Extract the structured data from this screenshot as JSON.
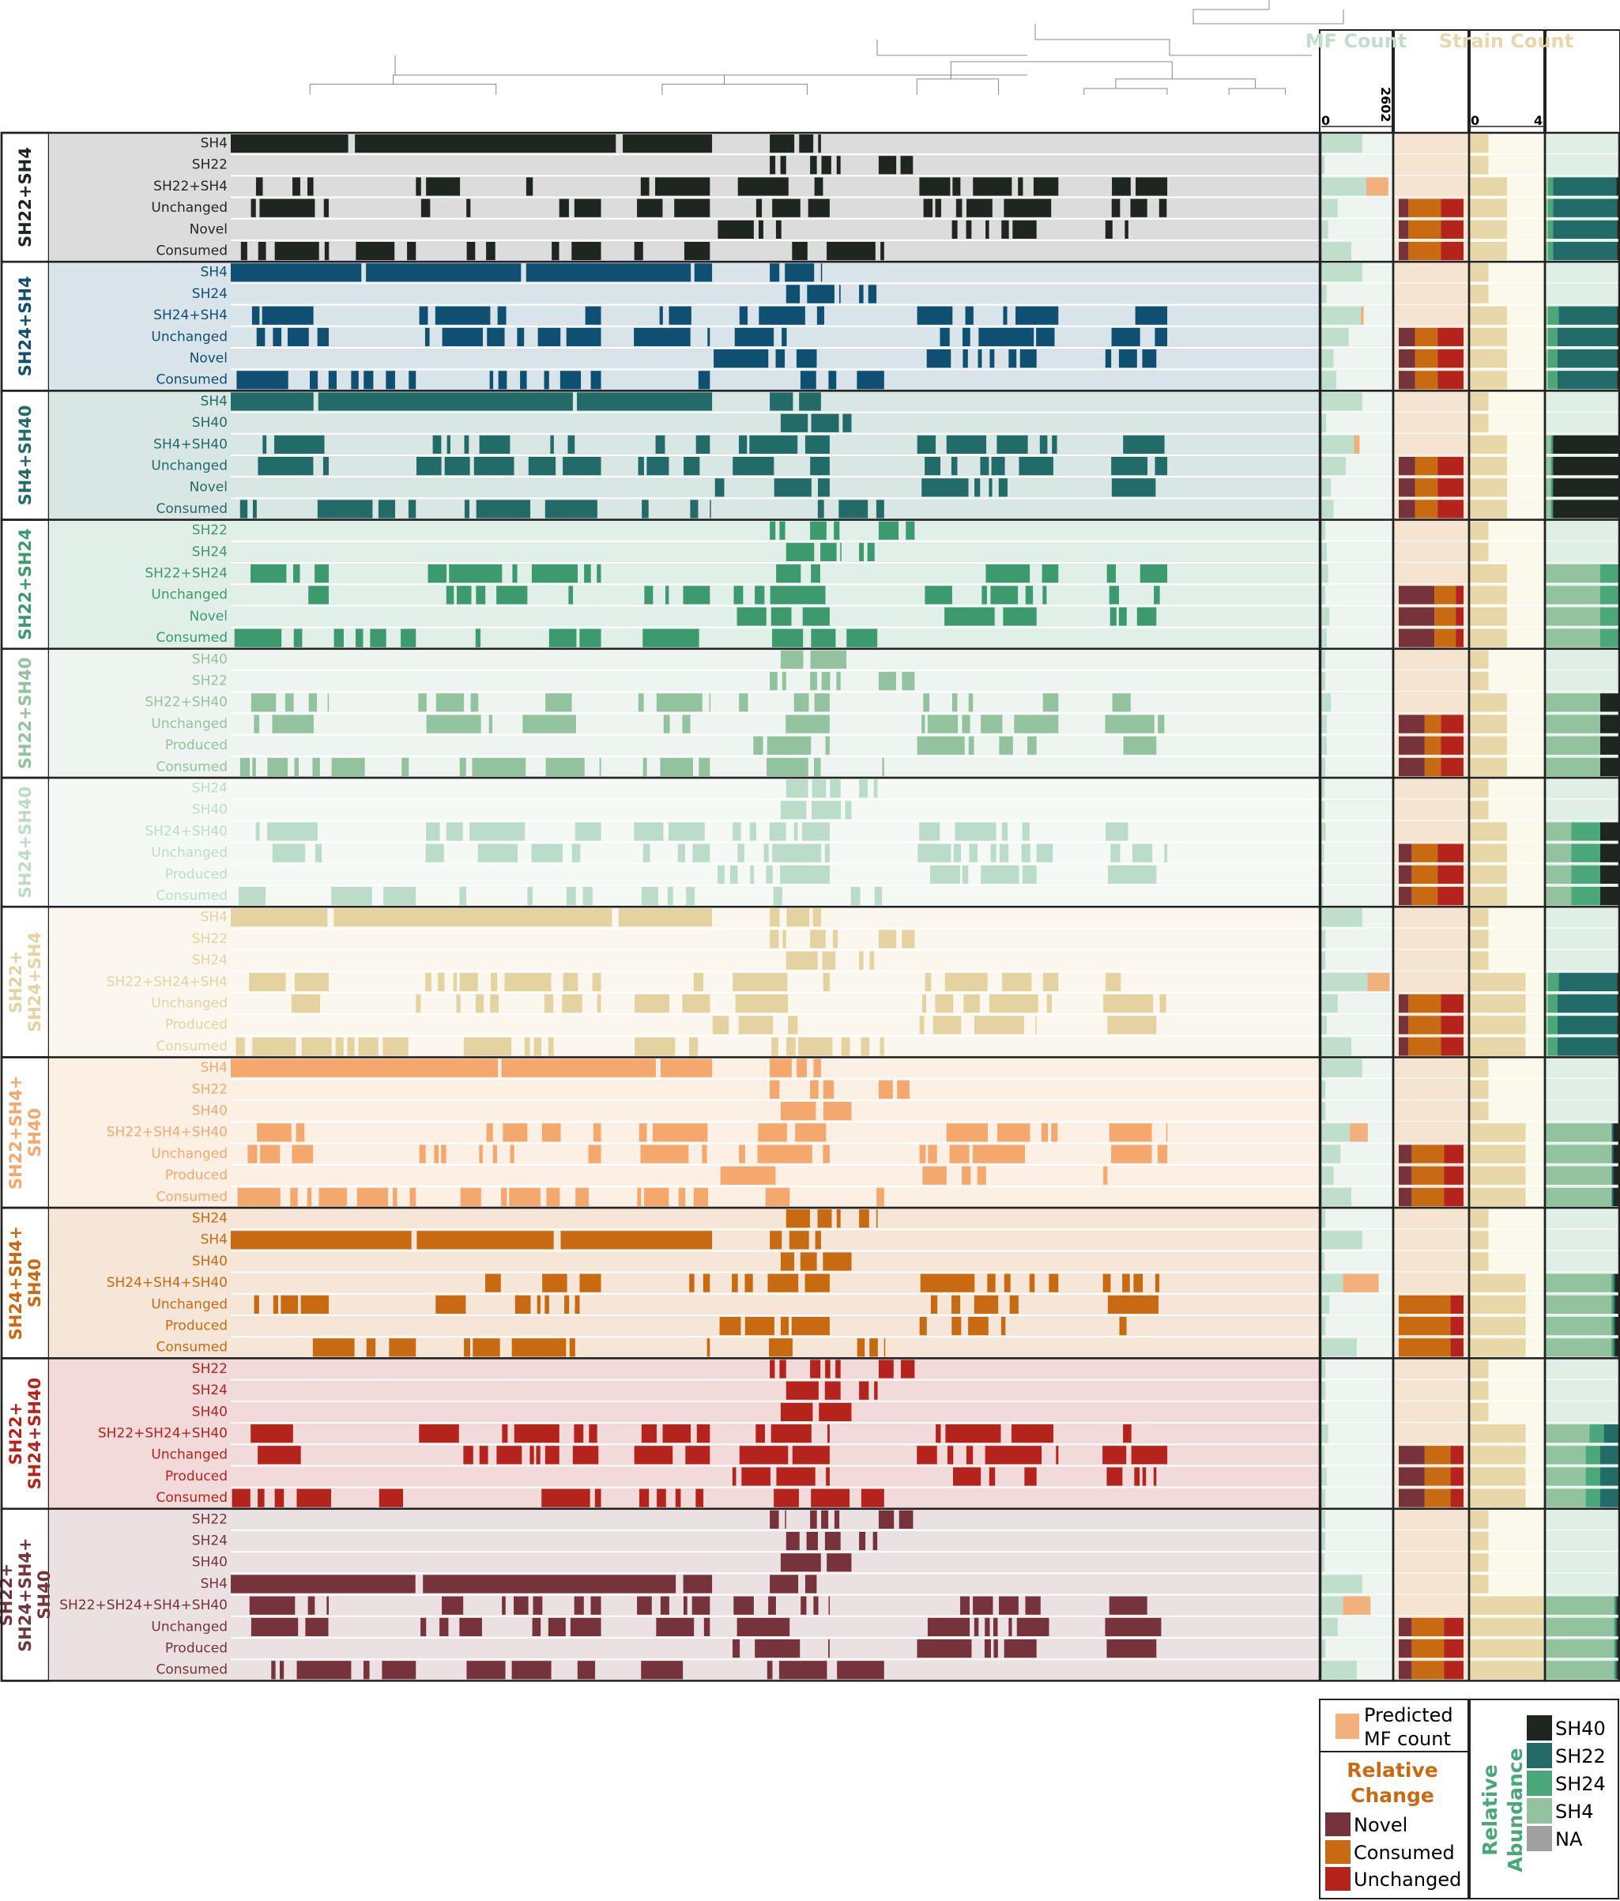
{
  "chart_data": {
    "type": "heatmap",
    "column_headers": {
      "mf_count": "MF Count",
      "strain_count": "Strain Count",
      "mf_axis_min": "0",
      "mf_axis_max": "2602",
      "strain_axis_min": "0",
      "strain_axis_max": "4"
    },
    "mf_max": 2602,
    "strain_max": 4,
    "groups": [
      {
        "name": "SH22+SH4",
        "color": "#1f2620",
        "bg": "#dcdcdc",
        "rows": [
          {
            "label": "SH4",
            "mf": 1500,
            "strains": 1
          },
          {
            "label": "SH22",
            "mf": 120,
            "strains": 1
          },
          {
            "label": "SH22+SH4",
            "mf": 2450,
            "pred": 800,
            "strains": 2,
            "ab": [
              0.03,
              0.87,
              0.07,
              0.03
            ]
          },
          {
            "label": "Unchanged",
            "mf": 600,
            "strains": 2,
            "rc": [
              0.15,
              0.5,
              0.35
            ],
            "ab": [
              0.02,
              0.88,
              0.07,
              0.03
            ]
          },
          {
            "label": "Novel",
            "mf": 250,
            "strains": 2,
            "rc": [
              0.15,
              0.5,
              0.35
            ],
            "ab": [
              0.02,
              0.88,
              0.07,
              0.03
            ]
          },
          {
            "label": "Consumed",
            "mf": 1100,
            "strains": 2,
            "rc": [
              0.15,
              0.5,
              0.35
            ],
            "ab": [
              0.02,
              0.88,
              0.07,
              0.03
            ]
          }
        ]
      },
      {
        "name": "SH24+SH4",
        "color": "#0f4f72",
        "bg": "#d9e4ea",
        "rows": [
          {
            "label": "SH4",
            "mf": 1500,
            "strains": 1
          },
          {
            "label": "SH24",
            "mf": 200,
            "strains": 1
          },
          {
            "label": "SH24+SH4",
            "mf": 1550,
            "pred": 100,
            "strains": 2,
            "ab": [
              0.02,
              0.8,
              0.15,
              0.03
            ]
          },
          {
            "label": "Unchanged",
            "mf": 1000,
            "strains": 2,
            "rc": [
              0.25,
              0.35,
              0.4
            ],
            "ab": [
              0.02,
              0.82,
              0.13,
              0.03
            ]
          },
          {
            "label": "Novel",
            "mf": 450,
            "strains": 2,
            "rc": [
              0.25,
              0.35,
              0.4
            ],
            "ab": [
              0.02,
              0.82,
              0.13,
              0.03
            ]
          },
          {
            "label": "Consumed",
            "mf": 550,
            "strains": 2,
            "rc": [
              0.25,
              0.35,
              0.4
            ],
            "ab": [
              0.02,
              0.82,
              0.13,
              0.03
            ]
          }
        ]
      },
      {
        "name": "SH4+SH40",
        "color": "#236b68",
        "bg": "#d8e6e4",
        "rows": [
          {
            "label": "SH4",
            "mf": 1500,
            "strains": 1
          },
          {
            "label": "SH40",
            "mf": 180,
            "strains": 1
          },
          {
            "label": "SH4+SH40",
            "mf": 1400,
            "pred": 200,
            "strains": 2,
            "ab": [
              0.9,
              0.01,
              0.02,
              0.07
            ]
          },
          {
            "label": "Unchanged",
            "mf": 900,
            "strains": 2,
            "rc": [
              0.25,
              0.35,
              0.4
            ],
            "ab": [
              0.9,
              0.01,
              0.02,
              0.07
            ]
          },
          {
            "label": "Novel",
            "mf": 350,
            "strains": 2,
            "rc": [
              0.25,
              0.35,
              0.4
            ],
            "ab": [
              0.9,
              0.01,
              0.02,
              0.07
            ]
          },
          {
            "label": "Consumed",
            "mf": 450,
            "strains": 2,
            "rc": [
              0.25,
              0.35,
              0.4
            ],
            "ab": [
              0.9,
              0.01,
              0.02,
              0.07
            ]
          }
        ]
      },
      {
        "name": "SH22+SH24",
        "color": "#3d9a6e",
        "bg": "#e0efe8",
        "rows": [
          {
            "label": "SH22",
            "mf": 150,
            "strains": 1
          },
          {
            "label": "SH24",
            "mf": 200,
            "strains": 1
          },
          {
            "label": "SH22+SH24",
            "mf": 250,
            "strains": 2,
            "ab": [
              0.0,
              0.0,
              0.25,
              0.75
            ]
          },
          {
            "label": "Unchanged",
            "mf": 150,
            "strains": 2,
            "rc": [
              0.55,
              0.33,
              0.12
            ],
            "ab": [
              0.0,
              0.0,
              0.25,
              0.75
            ]
          },
          {
            "label": "Novel",
            "mf": 300,
            "strains": 2,
            "rc": [
              0.55,
              0.33,
              0.12
            ],
            "ab": [
              0.0,
              0.0,
              0.25,
              0.75
            ]
          },
          {
            "label": "Consumed",
            "mf": 200,
            "strains": 2,
            "rc": [
              0.55,
              0.33,
              0.12
            ],
            "ab": [
              0.0,
              0.0,
              0.25,
              0.75
            ]
          }
        ]
      },
      {
        "name": "SH22+SH40",
        "color": "#93c29e",
        "bg": "#eef5f0",
        "rows": [
          {
            "label": "SH40",
            "mf": 150,
            "strains": 1
          },
          {
            "label": "SH22",
            "mf": 150,
            "strains": 1
          },
          {
            "label": "SH22+SH40",
            "mf": 350,
            "strains": 2,
            "ab": [
              0.25,
              0.0,
              0.0,
              0.75
            ]
          },
          {
            "label": "Unchanged",
            "mf": 200,
            "strains": 2,
            "rc": [
              0.4,
              0.25,
              0.35
            ],
            "ab": [
              0.25,
              0.0,
              0.0,
              0.75
            ]
          },
          {
            "label": "Produced",
            "mf": 200,
            "strains": 2,
            "rc": [
              0.4,
              0.25,
              0.35
            ],
            "ab": [
              0.25,
              0.0,
              0.0,
              0.75
            ]
          },
          {
            "label": "Consumed",
            "mf": 150,
            "strains": 2,
            "rc": [
              0.4,
              0.25,
              0.35
            ],
            "ab": [
              0.25,
              0.0,
              0.0,
              0.75
            ]
          }
        ]
      },
      {
        "name": "SH24+SH40",
        "color": "#bcdcca",
        "bg": "#f4f9f6",
        "rows": [
          {
            "label": "SH24",
            "mf": 120,
            "strains": 1
          },
          {
            "label": "SH40",
            "mf": 120,
            "strains": 1
          },
          {
            "label": "SH24+SH40",
            "mf": 150,
            "pred": 20,
            "strains": 2,
            "ab": [
              0.25,
              0.0,
              0.4,
              0.35
            ]
          },
          {
            "label": "Unchanged",
            "mf": 100,
            "strains": 2,
            "rc": [
              0.2,
              0.4,
              0.4
            ],
            "ab": [
              0.25,
              0.0,
              0.4,
              0.35
            ]
          },
          {
            "label": "Produced",
            "mf": 80,
            "strains": 2,
            "rc": [
              0.2,
              0.4,
              0.4
            ],
            "ab": [
              0.25,
              0.0,
              0.4,
              0.35
            ]
          },
          {
            "label": "Consumed",
            "mf": 80,
            "strains": 2,
            "rc": [
              0.2,
              0.4,
              0.4
            ],
            "ab": [
              0.25,
              0.0,
              0.4,
              0.35
            ]
          }
        ]
      },
      {
        "name": "SH22+SH24+SH4",
        "color": "#e4d3a0",
        "bg": "#fbf7ee",
        "rows": [
          {
            "label": "SH4",
            "mf": 1500,
            "strains": 1
          },
          {
            "label": "SH22",
            "mf": 150,
            "strains": 1
          },
          {
            "label": "SH24",
            "mf": 150,
            "strains": 1
          },
          {
            "label": "SH22+SH24+SH4",
            "mf": 2500,
            "pred": 800,
            "strains": 3,
            "ab": [
              0.02,
              0.8,
              0.15,
              0.03
            ]
          },
          {
            "label": "Unchanged",
            "mf": 600,
            "strains": 3,
            "rc": [
              0.15,
              0.5,
              0.35
            ],
            "ab": [
              0.02,
              0.82,
              0.13,
              0.03
            ]
          },
          {
            "label": "Produced",
            "mf": 200,
            "strains": 3,
            "rc": [
              0.15,
              0.5,
              0.35
            ],
            "ab": [
              0.02,
              0.82,
              0.13,
              0.03
            ]
          },
          {
            "label": "Consumed",
            "mf": 1100,
            "strains": 3,
            "rc": [
              0.15,
              0.5,
              0.35
            ],
            "ab": [
              0.02,
              0.82,
              0.13,
              0.03
            ]
          }
        ]
      },
      {
        "name": "SH22+SH4+SH40",
        "color": "#f4a86e",
        "bg": "#fcefe3",
        "rows": [
          {
            "label": "SH4",
            "mf": 1500,
            "strains": 1
          },
          {
            "label": "SH22",
            "mf": 150,
            "strains": 1
          },
          {
            "label": "SH40",
            "mf": 150,
            "strains": 1
          },
          {
            "label": "SH22+SH4+SH40",
            "mf": 1700,
            "pred": 650,
            "strains": 3,
            "ab": [
              0.07,
              0.02,
              0.01,
              0.9
            ]
          },
          {
            "label": "Unchanged",
            "mf": 700,
            "strains": 3,
            "rc": [
              0.2,
              0.5,
              0.3
            ],
            "ab": [
              0.07,
              0.02,
              0.01,
              0.9
            ]
          },
          {
            "label": "Produced",
            "mf": 450,
            "strains": 3,
            "rc": [
              0.2,
              0.5,
              0.3
            ],
            "ab": [
              0.07,
              0.02,
              0.01,
              0.9
            ]
          },
          {
            "label": "Consumed",
            "mf": 1100,
            "strains": 3,
            "rc": [
              0.2,
              0.5,
              0.3
            ],
            "ab": [
              0.07,
              0.02,
              0.01,
              0.9
            ]
          }
        ]
      },
      {
        "name": "SH24+SH4+SH40",
        "color": "#c86a12",
        "bg": "#f6e6d7",
        "rows": [
          {
            "label": "SH24",
            "mf": 150,
            "strains": 1
          },
          {
            "label": "SH4",
            "mf": 1500,
            "strains": 1
          },
          {
            "label": "SH40",
            "mf": 120,
            "strains": 1
          },
          {
            "label": "SH24+SH4+SH40",
            "mf": 2100,
            "pred": 1300,
            "strains": 3,
            "ab": [
              0.05,
              0.02,
              0.03,
              0.9
            ]
          },
          {
            "label": "Unchanged",
            "mf": 300,
            "strains": 3,
            "rc": [
              0.0,
              0.8,
              0.2
            ],
            "ab": [
              0.05,
              0.02,
              0.03,
              0.9
            ]
          },
          {
            "label": "Produced",
            "mf": 150,
            "strains": 3,
            "rc": [
              0.0,
              0.8,
              0.2
            ],
            "ab": [
              0.05,
              0.02,
              0.03,
              0.9
            ]
          },
          {
            "label": "Consumed",
            "mf": 1300,
            "strains": 3,
            "rc": [
              0.0,
              0.8,
              0.2
            ],
            "ab": [
              0.05,
              0.02,
              0.03,
              0.9
            ]
          }
        ]
      },
      {
        "name": "SH22+SH24+SH40",
        "color": "#b5231d",
        "bg": "#f1dad9",
        "rows": [
          {
            "label": "SH22",
            "mf": 150,
            "strains": 1
          },
          {
            "label": "SH24",
            "mf": 150,
            "strains": 1
          },
          {
            "label": "SH40",
            "mf": 120,
            "strains": 1
          },
          {
            "label": "SH22+SH24+SH40",
            "mf": 250,
            "strains": 3,
            "ab": [
              0.0,
              0.2,
              0.2,
              0.6
            ]
          },
          {
            "label": "Unchanged",
            "mf": 120,
            "strains": 3,
            "rc": [
              0.4,
              0.4,
              0.2
            ],
            "ab": [
              0.0,
              0.25,
              0.2,
              0.55
            ]
          },
          {
            "label": "Produced",
            "mf": 200,
            "strains": 3,
            "rc": [
              0.4,
              0.4,
              0.2
            ],
            "ab": [
              0.0,
              0.25,
              0.2,
              0.55
            ]
          },
          {
            "label": "Consumed",
            "mf": 150,
            "strains": 3,
            "rc": [
              0.4,
              0.4,
              0.2
            ],
            "ab": [
              0.0,
              0.25,
              0.2,
              0.55
            ]
          }
        ]
      },
      {
        "name": "SH22+SH24+SH4+SH40",
        "color": "#76333c",
        "bg": "#ebe1e2",
        "rows": [
          {
            "label": "SH22",
            "mf": 150,
            "strains": 1
          },
          {
            "label": "SH24",
            "mf": 150,
            "strains": 1
          },
          {
            "label": "SH40",
            "mf": 120,
            "strains": 1
          },
          {
            "label": "SH4",
            "mf": 1500,
            "strains": 1
          },
          {
            "label": "SH22+SH24+SH4+SH40",
            "mf": 1800,
            "pred": 1000,
            "strains": 4,
            "ab": [
              0.02,
              0.02,
              0.02,
              0.94
            ]
          },
          {
            "label": "Unchanged",
            "mf": 600,
            "strains": 4,
            "rc": [
              0.2,
              0.5,
              0.3
            ],
            "ab": [
              0.02,
              0.02,
              0.02,
              0.94
            ]
          },
          {
            "label": "Produced",
            "mf": 150,
            "strains": 4,
            "rc": [
              0.2,
              0.5,
              0.3
            ],
            "ab": [
              0.02,
              0.02,
              0.02,
              0.94
            ]
          },
          {
            "label": "Consumed",
            "mf": 1300,
            "strains": 4,
            "rc": [
              0.2,
              0.5,
              0.3
            ],
            "ab": [
              0.02,
              0.02,
              0.02,
              0.94
            ]
          }
        ]
      }
    ],
    "legend": {
      "predicted_line1": "Predicted",
      "predicted_line2": "MF count",
      "relative_change_title1": "Relative",
      "relative_change_title2": "Change",
      "relative_change_items": [
        "Novel",
        "Consumed",
        "Unchanged"
      ],
      "relative_abundance_title1": "Relative",
      "relative_abundance_title2": "Abundance",
      "relative_abundance_items": [
        "SH40",
        "SH22",
        "SH24",
        "SH4",
        "NA"
      ]
    }
  },
  "colors": {
    "mf_bar": "#bfdecb",
    "mf_bg": "#eef5f0",
    "predicted": "#f2b07c",
    "rc_bg": "#f6e4d3",
    "strain_bar": "#e7d7a9",
    "strain_bg": "#fbf8ec",
    "ab_bg": "#e0efe6",
    "novel": "#76333c",
    "consumed": "#c86a12",
    "unchanged": "#b5231d",
    "sh40": "#1f2620",
    "sh22": "#236b68",
    "sh24": "#4aa77a",
    "sh4": "#93c29e",
    "na": "#a0a0a0",
    "mf_title": "#bfdecb",
    "strain_title": "#e7d7a9",
    "rc_title": "#c86a12",
    "ab_title": "#4aa77a"
  }
}
